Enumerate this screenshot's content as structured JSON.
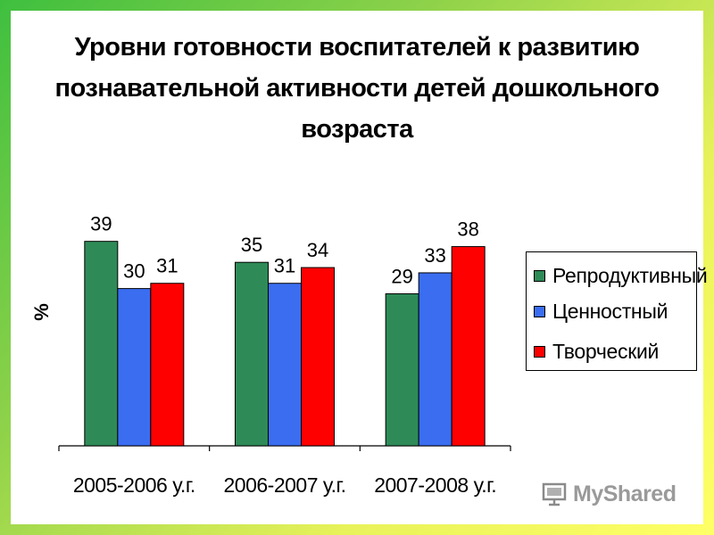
{
  "title_lines": [
    "Уровни готовности воспитателей к развитию",
    "познавательной активности детей дошкольного",
    "возраста"
  ],
  "watermark": "MyShared",
  "chart_data": {
    "type": "bar",
    "title": "Уровни готовности воспитателей к развитию познавательной активности детей дошкольного возраста",
    "xlabel": "",
    "ylabel": "%",
    "ylim": [
      0,
      50
    ],
    "grid": false,
    "legend_position": "right",
    "categories": [
      "2005-2006 у.г.",
      "2006-2007 у.г.",
      "2007-2008 у.г."
    ],
    "series": [
      {
        "name": "Репродуктивный",
        "color": "#2e8b57",
        "values": [
          39,
          35,
          29
        ]
      },
      {
        "name": "Ценностный",
        "color": "#3a6df0",
        "values": [
          30,
          31,
          33
        ]
      },
      {
        "name": "Творческий",
        "color": "#ff0000",
        "values": [
          31,
          34,
          38
        ]
      }
    ]
  }
}
